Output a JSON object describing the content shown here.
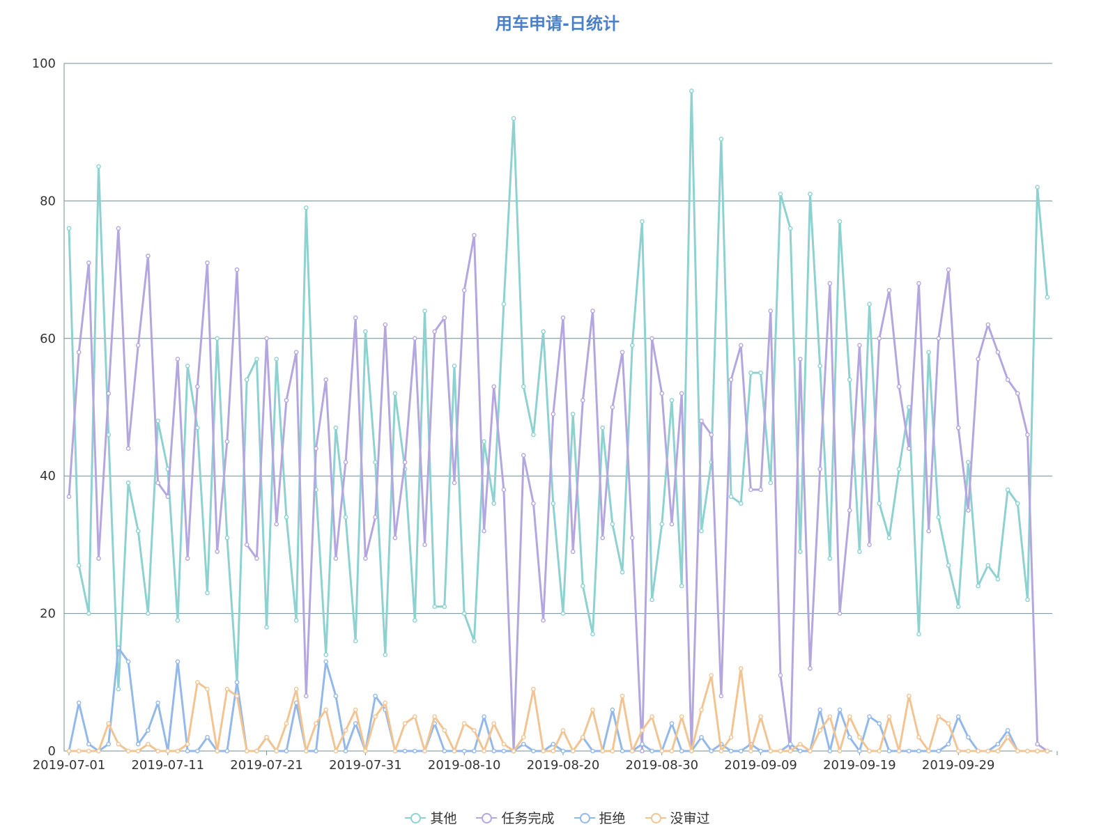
{
  "chart_data": {
    "type": "line",
    "title": "用车申请-日统计",
    "ylim": [
      0,
      100
    ],
    "yticks": [
      0,
      20,
      40,
      60,
      80,
      100
    ],
    "x_start": "2019-07-01",
    "x_tick_labels": [
      "2019-07-01",
      "2019-07-11",
      "2019-07-21",
      "2019-07-31",
      "2019-08-10",
      "2019-08-20",
      "2019-08-30",
      "2019-09-09",
      "2019-09-19",
      "2019-09-29"
    ],
    "grid": true,
    "legend_position": "bottom",
    "series": [
      {
        "name": "其他",
        "color": "#8ed1d1",
        "values": [
          76,
          27,
          20,
          85,
          46,
          9,
          39,
          32,
          20,
          48,
          41,
          19,
          56,
          47,
          23,
          60,
          31,
          10,
          54,
          57,
          18,
          57,
          34,
          19,
          79,
          38,
          14,
          47,
          34,
          16,
          61,
          42,
          14,
          52,
          41,
          19,
          64,
          21,
          21,
          56,
          20,
          16,
          45,
          36,
          65,
          92,
          53,
          46,
          61,
          36,
          20,
          49,
          24,
          17,
          47,
          33,
          26,
          59,
          77,
          22,
          33,
          51,
          24,
          96,
          32,
          42,
          89,
          37,
          36,
          55,
          55,
          39,
          81,
          76,
          29,
          81,
          56,
          28,
          77,
          54,
          29,
          65,
          36,
          31,
          41,
          50,
          17,
          58,
          34,
          27,
          21,
          42,
          24,
          27,
          25,
          38,
          36,
          22,
          82,
          66
        ]
      },
      {
        "name": "任务完成",
        "color": "#b4a7e0",
        "values": [
          37,
          58,
          71,
          28,
          52,
          76,
          44,
          59,
          72,
          39,
          37,
          57,
          28,
          53,
          71,
          29,
          45,
          70,
          30,
          28,
          60,
          33,
          51,
          58,
          8,
          44,
          54,
          28,
          42,
          63,
          28,
          34,
          62,
          31,
          42,
          60,
          30,
          61,
          63,
          39,
          67,
          75,
          32,
          53,
          38,
          0,
          43,
          36,
          19,
          49,
          63,
          29,
          51,
          64,
          31,
          50,
          58,
          31,
          0,
          60,
          52,
          33,
          52,
          0,
          48,
          46,
          8,
          54,
          59,
          38,
          38,
          64,
          11,
          0,
          57,
          12,
          41,
          68,
          20,
          35,
          59,
          30,
          60,
          67,
          53,
          44,
          68,
          32,
          60,
          70,
          47,
          35,
          57,
          62,
          58,
          54,
          52,
          46,
          1,
          0
        ]
      },
      {
        "name": "拒绝",
        "color": "#93b8ea",
        "values": [
          0,
          7,
          1,
          0,
          1,
          15,
          13,
          1,
          3,
          7,
          0,
          13,
          0,
          0,
          2,
          0,
          0,
          10,
          0,
          0,
          2,
          0,
          0,
          7,
          0,
          0,
          13,
          8,
          0,
          4,
          0,
          8,
          6,
          0,
          0,
          0,
          0,
          4,
          0,
          0,
          0,
          0,
          5,
          0,
          0,
          0,
          1,
          0,
          0,
          1,
          0,
          0,
          2,
          0,
          0,
          6,
          0,
          0,
          1,
          0,
          0,
          4,
          0,
          0,
          2,
          0,
          1,
          0,
          0,
          1,
          0,
          0,
          0,
          1,
          0,
          0,
          6,
          0,
          6,
          2,
          0,
          5,
          4,
          0,
          0,
          0,
          0,
          0,
          0,
          1,
          5,
          2,
          0,
          0,
          1,
          3,
          0,
          0,
          0,
          0
        ]
      },
      {
        "name": "没审过",
        "color": "#f2c492",
        "values": [
          0,
          0,
          0,
          0,
          4,
          1,
          0,
          0,
          1,
          0,
          0,
          0,
          1,
          10,
          9,
          0,
          9,
          8,
          0,
          0,
          2,
          0,
          4,
          9,
          0,
          4,
          6,
          0,
          3,
          6,
          0,
          5,
          7,
          0,
          4,
          5,
          0,
          5,
          3,
          0,
          4,
          3,
          0,
          4,
          1,
          0,
          2,
          9,
          0,
          0,
          3,
          0,
          2,
          6,
          0,
          0,
          8,
          0,
          3,
          5,
          0,
          0,
          5,
          0,
          6,
          11,
          0,
          2,
          12,
          0,
          5,
          0,
          0,
          0,
          1,
          0,
          3,
          5,
          0,
          5,
          2,
          0,
          0,
          5,
          0,
          8,
          2,
          0,
          5,
          4,
          0,
          0,
          0,
          0,
          0,
          2,
          0,
          0,
          0,
          0
        ]
      }
    ]
  }
}
